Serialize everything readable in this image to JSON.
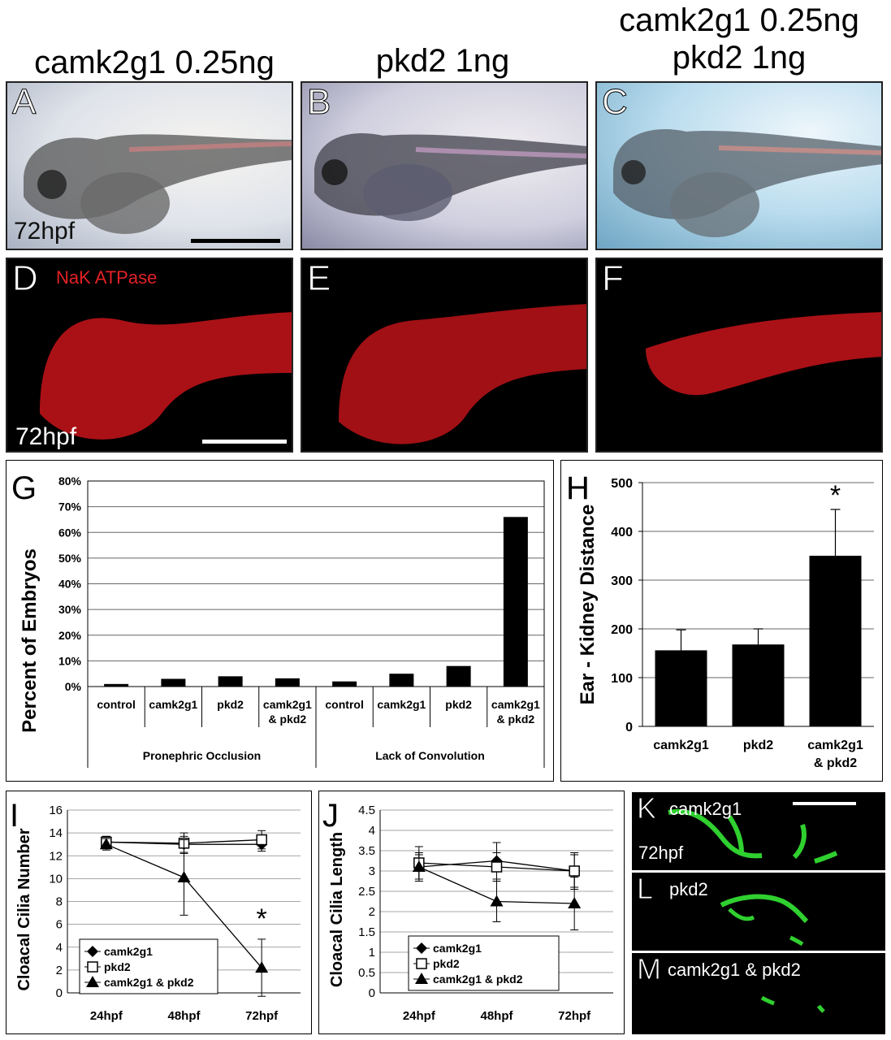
{
  "headers": {
    "a": "camk2g1 0.25ng",
    "b": "pkd2 1ng",
    "c1": "camk2g1 0.25ng",
    "c2": "pkd2 1ng"
  },
  "panels": {
    "A": "A",
    "B": "B",
    "C": "C",
    "D": "D",
    "E": "E",
    "F": "F",
    "G": "G",
    "H": "H",
    "I": "I",
    "J": "J",
    "K": "K",
    "L": "L",
    "M": "M"
  },
  "labels": {
    "a_time": "72hpf",
    "d_stain": "NaK ATPase",
    "d_time": "72hpf",
    "k_name": "camk2g1",
    "k_time": "72hpf",
    "l_name": "pkd2",
    "m_name": "camk2g1 & pkd2"
  },
  "chart_data": [
    {
      "id": "G",
      "type": "bar",
      "ylabel": "Percent of Embryos",
      "ylim": [
        0,
        80
      ],
      "yticks": [
        "0%",
        "10%",
        "20%",
        "30%",
        "40%",
        "50%",
        "60%",
        "70%",
        "80%"
      ],
      "categories": [
        [
          "control"
        ],
        [
          "camk2g1"
        ],
        [
          "pkd2"
        ],
        [
          "camk2g1",
          "& pkd2"
        ],
        [
          "control"
        ],
        [
          "camk2g1"
        ],
        [
          "pkd2"
        ],
        [
          "camk2g1",
          "& pkd2"
        ]
      ],
      "groups": [
        "Pronephric Occlusion",
        "Lack of Convolution"
      ],
      "values": [
        1,
        3,
        4,
        3.2,
        2,
        5,
        8,
        66
      ],
      "grid": true
    },
    {
      "id": "H",
      "type": "bar",
      "ylabel": "Ear - Kidney Distance",
      "ylim": [
        0,
        500
      ],
      "yticks": [
        "0",
        "100",
        "200",
        "300",
        "400",
        "500"
      ],
      "categories": [
        [
          "camk2g1"
        ],
        [
          "pkd2"
        ],
        [
          "camk2g1",
          "& pkd2"
        ]
      ],
      "values": [
        156,
        168,
        350
      ],
      "errors": [
        42,
        32,
        95
      ],
      "significance": [
        "",
        "",
        "*"
      ],
      "grid": true
    },
    {
      "id": "I",
      "type": "line",
      "ylabel": "Cloacal Cilia Number",
      "ylim": [
        0,
        16
      ],
      "yticks": [
        "0",
        "2",
        "4",
        "6",
        "8",
        "10",
        "12",
        "14",
        "16"
      ],
      "x": [
        "24hpf",
        "48hpf",
        "72hpf"
      ],
      "series": [
        {
          "name": "camk2g1",
          "marker": "diamond",
          "values": [
            13.2,
            13.0,
            13.0
          ],
          "errors": [
            0.5,
            0.7,
            0.6
          ]
        },
        {
          "name": "pkd2",
          "marker": "square",
          "values": [
            13.2,
            13.1,
            13.4
          ],
          "errors": [
            0.5,
            0.9,
            0.8
          ]
        },
        {
          "name": "camk2g1 & pkd2",
          "marker": "triangle",
          "values": [
            13.0,
            10.1,
            2.2
          ],
          "errors": [
            0.5,
            3.3,
            2.5
          ]
        }
      ],
      "significance": {
        "point": 2,
        "text": "*"
      },
      "grid": true
    },
    {
      "id": "J",
      "type": "line",
      "ylabel": "Cloacal Cilia Length",
      "ylim": [
        0,
        4.5
      ],
      "yticks": [
        "0",
        "0.5",
        "1",
        "1.5",
        "2",
        "2.5",
        "3",
        "3.5",
        "4",
        "4.5"
      ],
      "x": [
        "24hpf",
        "48hpf",
        "72hpf"
      ],
      "series": [
        {
          "name": "camk2g1",
          "marker": "diamond",
          "values": [
            3.1,
            3.25,
            3.0
          ],
          "errors": [
            0.3,
            0.45,
            0.45
          ]
        },
        {
          "name": "pkd2",
          "marker": "square",
          "values": [
            3.2,
            3.1,
            3.0
          ],
          "errors": [
            0.4,
            0.35,
            0.4
          ]
        },
        {
          "name": "camk2g1 & pkd2",
          "marker": "triangle",
          "values": [
            3.1,
            2.25,
            2.2
          ],
          "errors": [
            0.35,
            0.5,
            0.65
          ]
        }
      ],
      "grid": true
    }
  ]
}
